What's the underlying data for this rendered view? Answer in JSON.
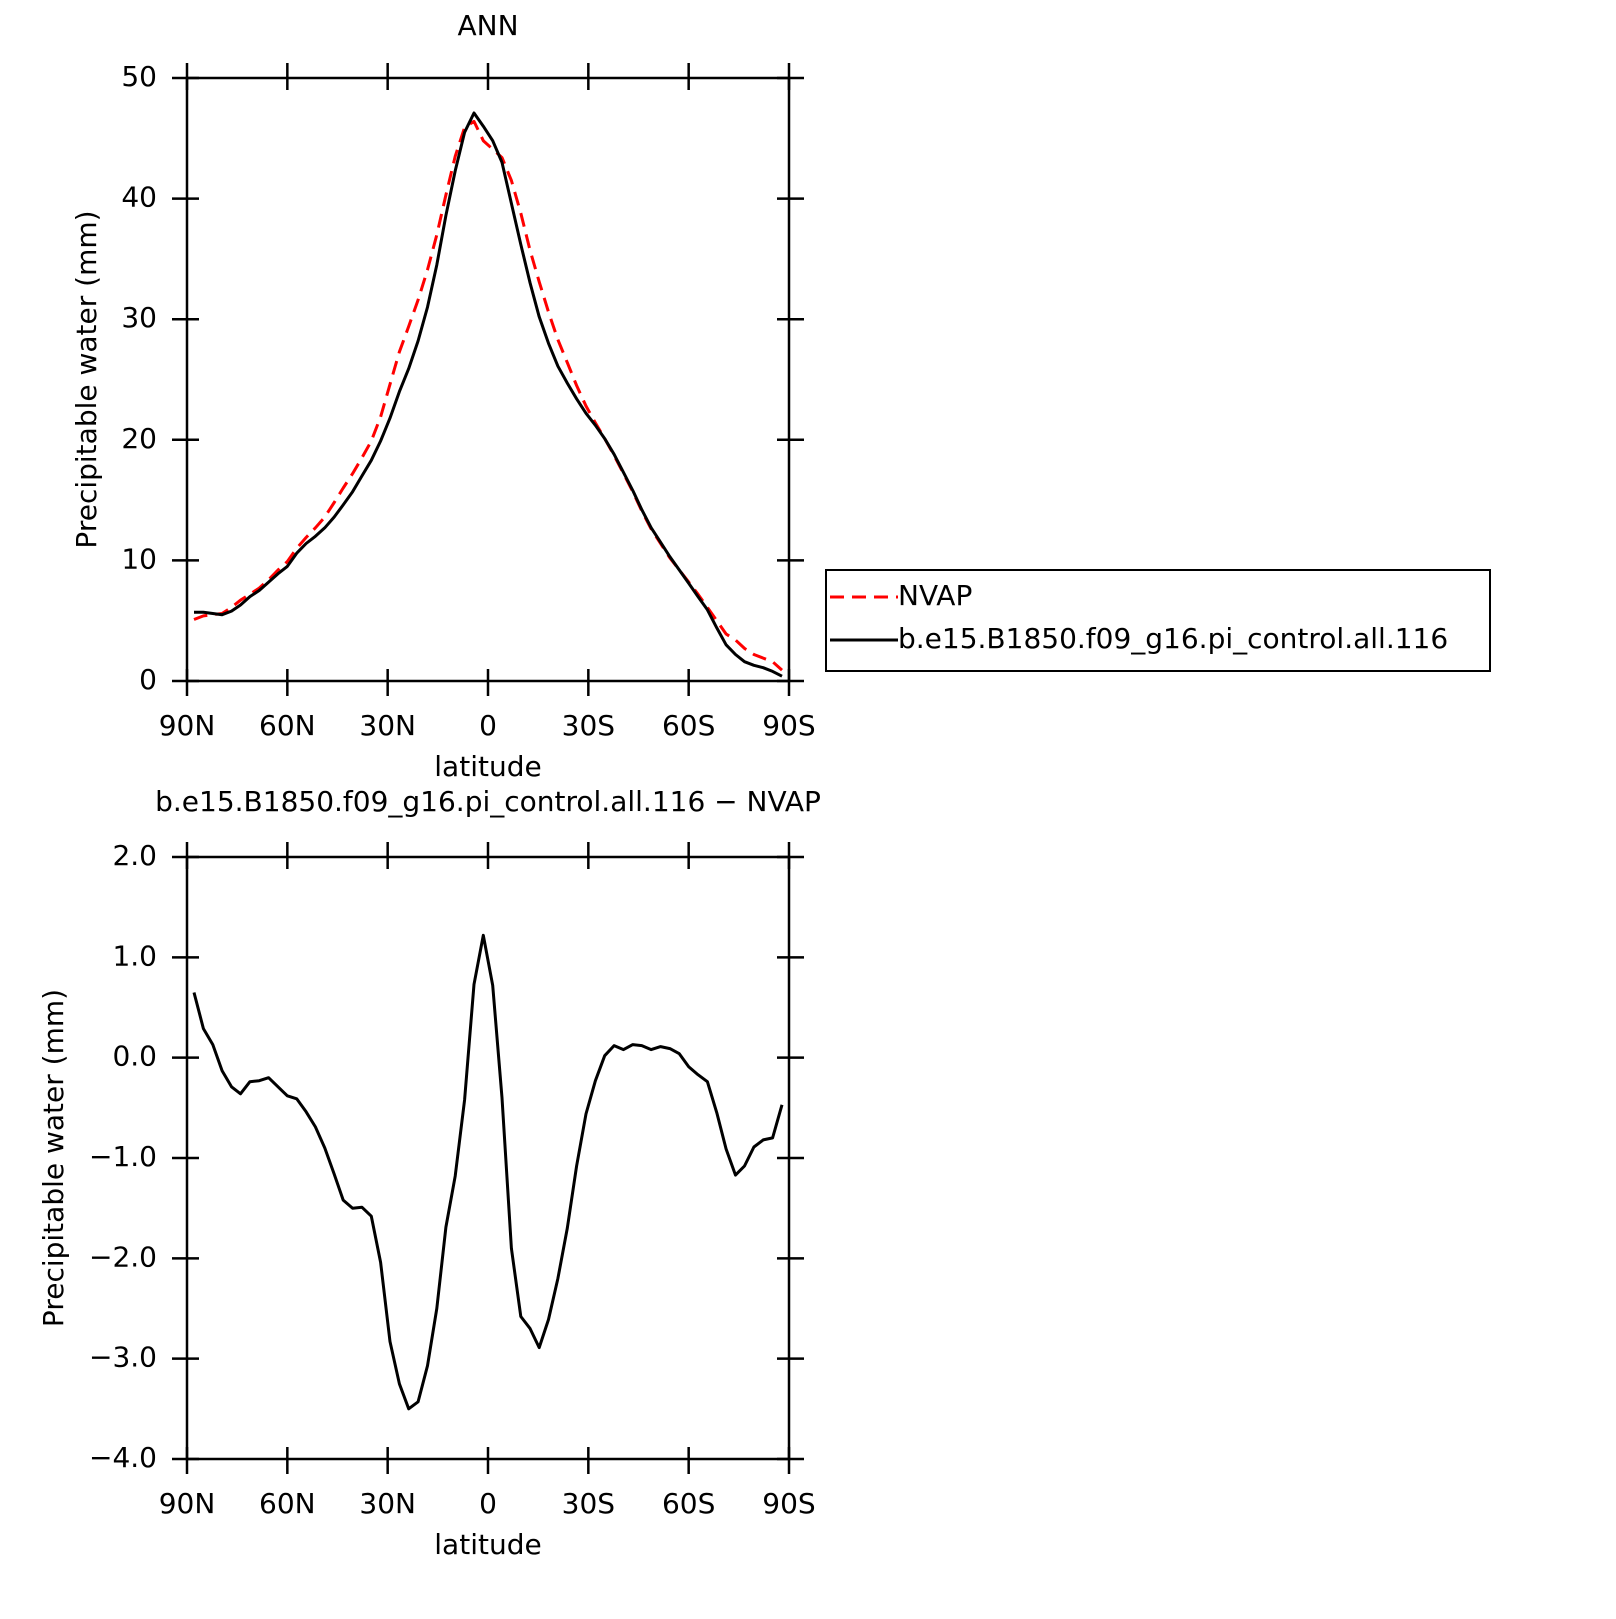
{
  "chart_data": [
    {
      "type": "line",
      "title": "ANN",
      "xlabel": "latitude",
      "ylabel": "Precipitable water (mm)",
      "x": [
        87.9,
        85.1,
        82.3,
        79.5,
        76.7,
        74.0,
        71.2,
        68.4,
        65.6,
        62.8,
        60.0,
        57.2,
        54.4,
        51.6,
        48.8,
        46.0,
        43.3,
        40.5,
        37.7,
        34.9,
        32.1,
        29.3,
        26.5,
        23.7,
        20.9,
        18.1,
        15.3,
        12.6,
        9.8,
        7.0,
        4.2,
        1.4,
        -1.4,
        -4.2,
        -7.0,
        -9.8,
        -12.6,
        -15.3,
        -18.1,
        -20.9,
        -23.7,
        -26.5,
        -29.3,
        -32.1,
        -34.9,
        -37.7,
        -40.5,
        -43.3,
        -46.0,
        -48.8,
        -51.6,
        -54.4,
        -57.2,
        -60.0,
        -62.8,
        -65.6,
        -68.4,
        -71.2,
        -74.0,
        -76.7,
        -79.5,
        -82.3,
        -85.1,
        -87.9
      ],
      "series": [
        {
          "name": "NVAP",
          "color": "#ff0000",
          "linestyle": "dashed",
          "values": [
            5.1,
            5.4,
            5.5,
            5.6,
            6.1,
            6.7,
            7.2,
            7.7,
            8.4,
            9.2,
            9.9,
            11.0,
            11.9,
            12.7,
            13.6,
            14.8,
            16.0,
            17.2,
            18.5,
            19.9,
            21.9,
            24.6,
            27.3,
            29.4,
            31.6,
            34.1,
            37.0,
            40.3,
            43.5,
            45.9,
            46.4,
            44.8,
            44.1,
            43.4,
            41.5,
            38.8,
            35.7,
            33.1,
            30.6,
            28.3,
            26.4,
            24.5,
            22.8,
            21.4,
            20.1,
            18.7,
            17.2,
            15.7,
            14.1,
            12.6,
            11.4,
            10.2,
            9.2,
            8.2,
            7.2,
            6.1,
            5.0,
            3.9,
            3.4,
            2.7,
            2.2,
            1.9,
            1.6,
            0.9
          ]
        },
        {
          "name": "b.e15.B1850.f09_g16.pi_control.all.116",
          "color": "#000000",
          "linestyle": "solid",
          "values": [
            5.7,
            5.7,
            5.6,
            5.5,
            5.8,
            6.3,
            7.0,
            7.5,
            8.2,
            8.9,
            9.5,
            10.6,
            11.4,
            12.0,
            12.7,
            13.6,
            14.6,
            15.7,
            17.0,
            18.3,
            19.9,
            21.8,
            24.0,
            25.9,
            28.2,
            31.0,
            34.5,
            38.6,
            42.3,
            45.5,
            47.1,
            46.0,
            44.8,
            43.0,
            39.6,
            36.2,
            33.0,
            30.2,
            28.0,
            26.1,
            24.7,
            23.4,
            22.2,
            21.2,
            20.1,
            18.8,
            17.3,
            15.8,
            14.2,
            12.7,
            11.5,
            10.3,
            9.2,
            8.1,
            7.0,
            5.9,
            4.4,
            3.0,
            2.2,
            1.6,
            1.3,
            1.1,
            0.8,
            0.4
          ]
        }
      ],
      "xlim": [
        90,
        -90
      ],
      "xticks": [
        {
          "value": 90,
          "label": "90N"
        },
        {
          "value": 60,
          "label": "60N"
        },
        {
          "value": 30,
          "label": "30N"
        },
        0,
        {
          "value": -30,
          "label": "30S"
        },
        {
          "value": -60,
          "label": "60S"
        },
        {
          "value": -90,
          "label": "90S"
        }
      ],
      "ylim": [
        0,
        50
      ],
      "yticks": [
        0,
        10,
        20,
        30,
        40,
        50
      ],
      "legend": "outside-right"
    },
    {
      "type": "line",
      "title": "b.e15.B1850.f09_g16.pi_control.all.116 − NVAP",
      "xlabel": "latitude",
      "ylabel": "Precipitable water (mm)",
      "x": [
        87.9,
        85.1,
        82.3,
        79.5,
        76.7,
        74.0,
        71.2,
        68.4,
        65.6,
        62.8,
        60.0,
        57.2,
        54.4,
        51.6,
        48.8,
        46.0,
        43.3,
        40.5,
        37.7,
        34.9,
        32.1,
        29.3,
        26.5,
        23.7,
        20.9,
        18.1,
        15.3,
        12.6,
        9.8,
        7.0,
        4.2,
        1.4,
        -1.4,
        -4.2,
        -7.0,
        -9.8,
        -12.6,
        -15.3,
        -18.1,
        -20.9,
        -23.7,
        -26.5,
        -29.3,
        -32.1,
        -34.9,
        -37.7,
        -40.5,
        -43.3,
        -46.0,
        -48.8,
        -51.6,
        -54.4,
        -57.2,
        -60.0,
        -62.8,
        -65.6,
        -68.4,
        -71.2,
        -74.0,
        -76.7,
        -79.5,
        -82.3,
        -85.1,
        -87.9
      ],
      "color": "#000000",
      "values": [
        0.65,
        0.29,
        0.13,
        -0.13,
        -0.29,
        -0.36,
        -0.24,
        -0.23,
        -0.2,
        -0.29,
        -0.38,
        -0.41,
        -0.54,
        -0.69,
        -0.9,
        -1.16,
        -1.42,
        -1.5,
        -1.49,
        -1.58,
        -2.04,
        -2.83,
        -3.25,
        -3.5,
        -3.43,
        -3.07,
        -2.5,
        -1.69,
        -1.18,
        -0.42,
        0.73,
        1.22,
        0.72,
        -0.4,
        -1.9,
        -2.58,
        -2.7,
        -2.89,
        -2.61,
        -2.2,
        -1.7,
        -1.08,
        -0.56,
        -0.23,
        0.02,
        0.12,
        0.08,
        0.13,
        0.12,
        0.08,
        0.11,
        0.09,
        0.04,
        -0.09,
        -0.17,
        -0.24,
        -0.55,
        -0.91,
        -1.17,
        -1.08,
        -0.89,
        -0.82,
        -0.8,
        -0.47
      ],
      "xlim": [
        90,
        -90
      ],
      "xticks": [
        {
          "value": 90,
          "label": "90N"
        },
        {
          "value": 60,
          "label": "60N"
        },
        {
          "value": 30,
          "label": "30N"
        },
        0,
        {
          "value": -30,
          "label": "30S"
        },
        {
          "value": -60,
          "label": "60S"
        },
        {
          "value": -90,
          "label": "90S"
        }
      ],
      "ylim": [
        -4,
        2
      ],
      "yticks": [
        {
          "value": -4,
          "label": "−4.0"
        },
        {
          "value": -3,
          "label": "−3.0"
        },
        {
          "value": -2,
          "label": "−2.0"
        },
        {
          "value": -1,
          "label": "−1.0"
        },
        {
          "value": 0,
          "label": "0.0"
        },
        {
          "value": 1,
          "label": "1.0"
        },
        {
          "value": 2,
          "label": "2.0"
        }
      ]
    }
  ]
}
